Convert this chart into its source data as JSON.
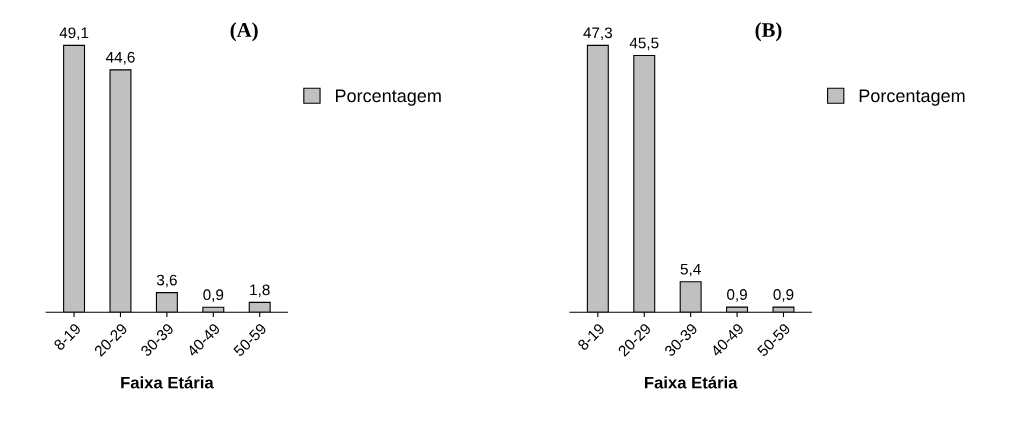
{
  "chart_data": [
    {
      "type": "bar",
      "title": "(A)",
      "xlabel": "Faixa Etária",
      "categories": [
        "8-19",
        "20-29",
        "30-39",
        "40-49",
        "50-59"
      ],
      "series": [
        {
          "name": "Porcentagem",
          "color": "#c0c0c0",
          "values": [
            49.1,
            44.6,
            3.6,
            0.9,
            1.8
          ],
          "value_labels": [
            "49,1",
            "44,6",
            "3,6",
            "0,9",
            "1,8"
          ]
        }
      ],
      "legend": "right",
      "grid": false
    },
    {
      "type": "bar",
      "title": "(B)",
      "xlabel": "Faixa Etária",
      "categories": [
        "8-19",
        "20-29",
        "30-39",
        "40-49",
        "50-59"
      ],
      "series": [
        {
          "name": "Porcentagem",
          "color": "#c0c0c0",
          "values": [
            47.3,
            45.5,
            5.4,
            0.9,
            0.9
          ],
          "value_labels": [
            "47,3",
            "45,5",
            "5,4",
            "0,9",
            "0,9"
          ]
        }
      ],
      "legend": "right",
      "grid": false
    }
  ]
}
